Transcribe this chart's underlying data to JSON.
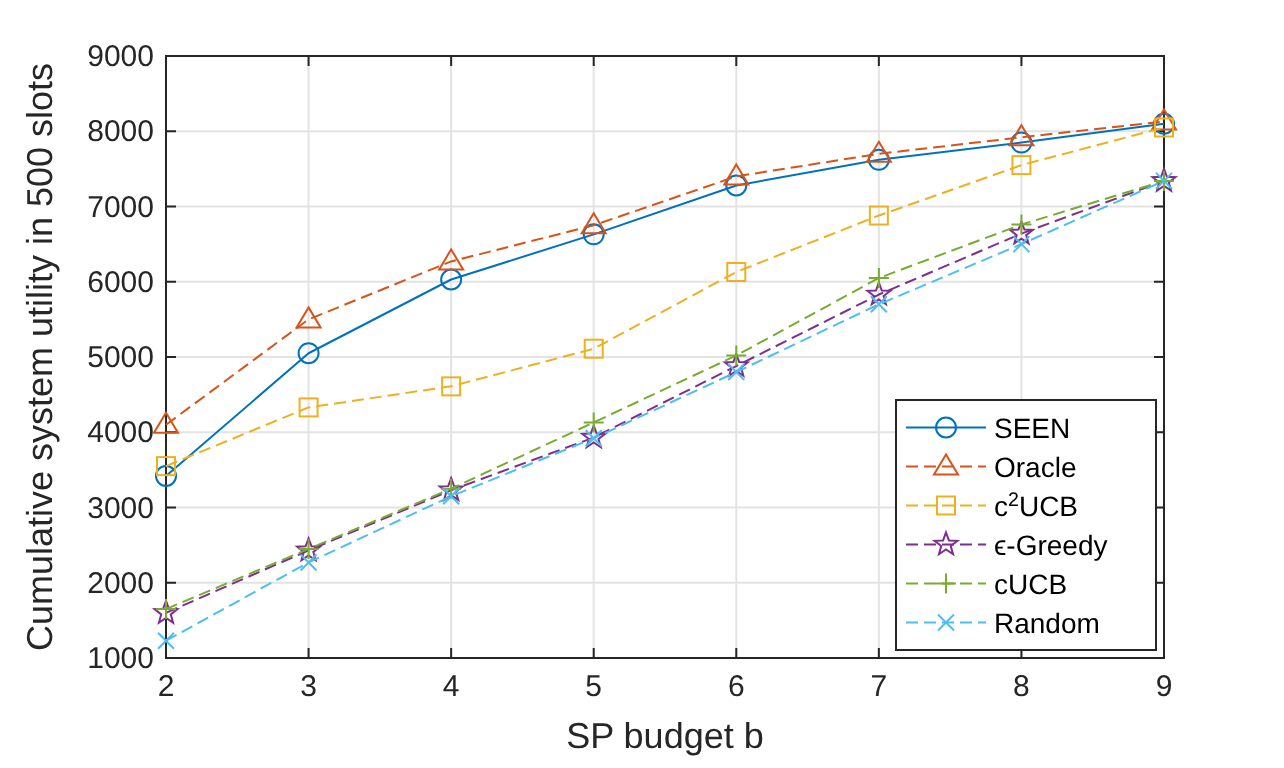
{
  "chart_data": {
    "type": "line",
    "xlabel": "SP budget b",
    "ylabel": "Cumulative system utility in 500 slots",
    "x": [
      2,
      3,
      4,
      5,
      6,
      7,
      8,
      9
    ],
    "series": [
      {
        "name": "SEEN",
        "color": "#0072bd",
        "marker": "circle",
        "line_style": "solid",
        "values": [
          3420,
          5050,
          6030,
          6630,
          7280,
          7620,
          7850,
          8100
        ]
      },
      {
        "name": "Oracle",
        "color": "#d95319",
        "marker": "triangle",
        "line_style": "dashed",
        "values": [
          4100,
          5500,
          6270,
          6750,
          7400,
          7700,
          7920,
          8130
        ]
      },
      {
        "name": "c$^{2}$UCB",
        "color": "#edb120",
        "marker": "square",
        "line_style": "dashed",
        "values": [
          3550,
          4330,
          4610,
          5110,
          6130,
          6880,
          7550,
          8050
        ]
      },
      {
        "name": "ϵ-Greedy",
        "color": "#7e2f8e",
        "marker": "star",
        "line_style": "dashed",
        "values": [
          1600,
          2430,
          3230,
          3930,
          4880,
          5830,
          6640,
          7340
        ]
      },
      {
        "name": "cUCB",
        "color": "#77ac30",
        "marker": "cross",
        "line_style": "dashed",
        "values": [
          1650,
          2450,
          3250,
          4130,
          5020,
          6050,
          6760,
          7340
        ]
      },
      {
        "name": "Random",
        "color": "#4dbeee",
        "marker": "x",
        "line_style": "dashed",
        "values": [
          1230,
          2270,
          3150,
          3920,
          4800,
          5700,
          6500,
          7340
        ]
      }
    ],
    "xlim": [
      2,
      9
    ],
    "xticks": [
      2,
      3,
      4,
      5,
      6,
      7,
      8,
      9
    ],
    "ylim": [
      1000,
      9000
    ],
    "yticks": [
      1000,
      2000,
      3000,
      4000,
      5000,
      6000,
      7000,
      8000,
      9000
    ],
    "grid": true,
    "legend": "bottom right"
  }
}
